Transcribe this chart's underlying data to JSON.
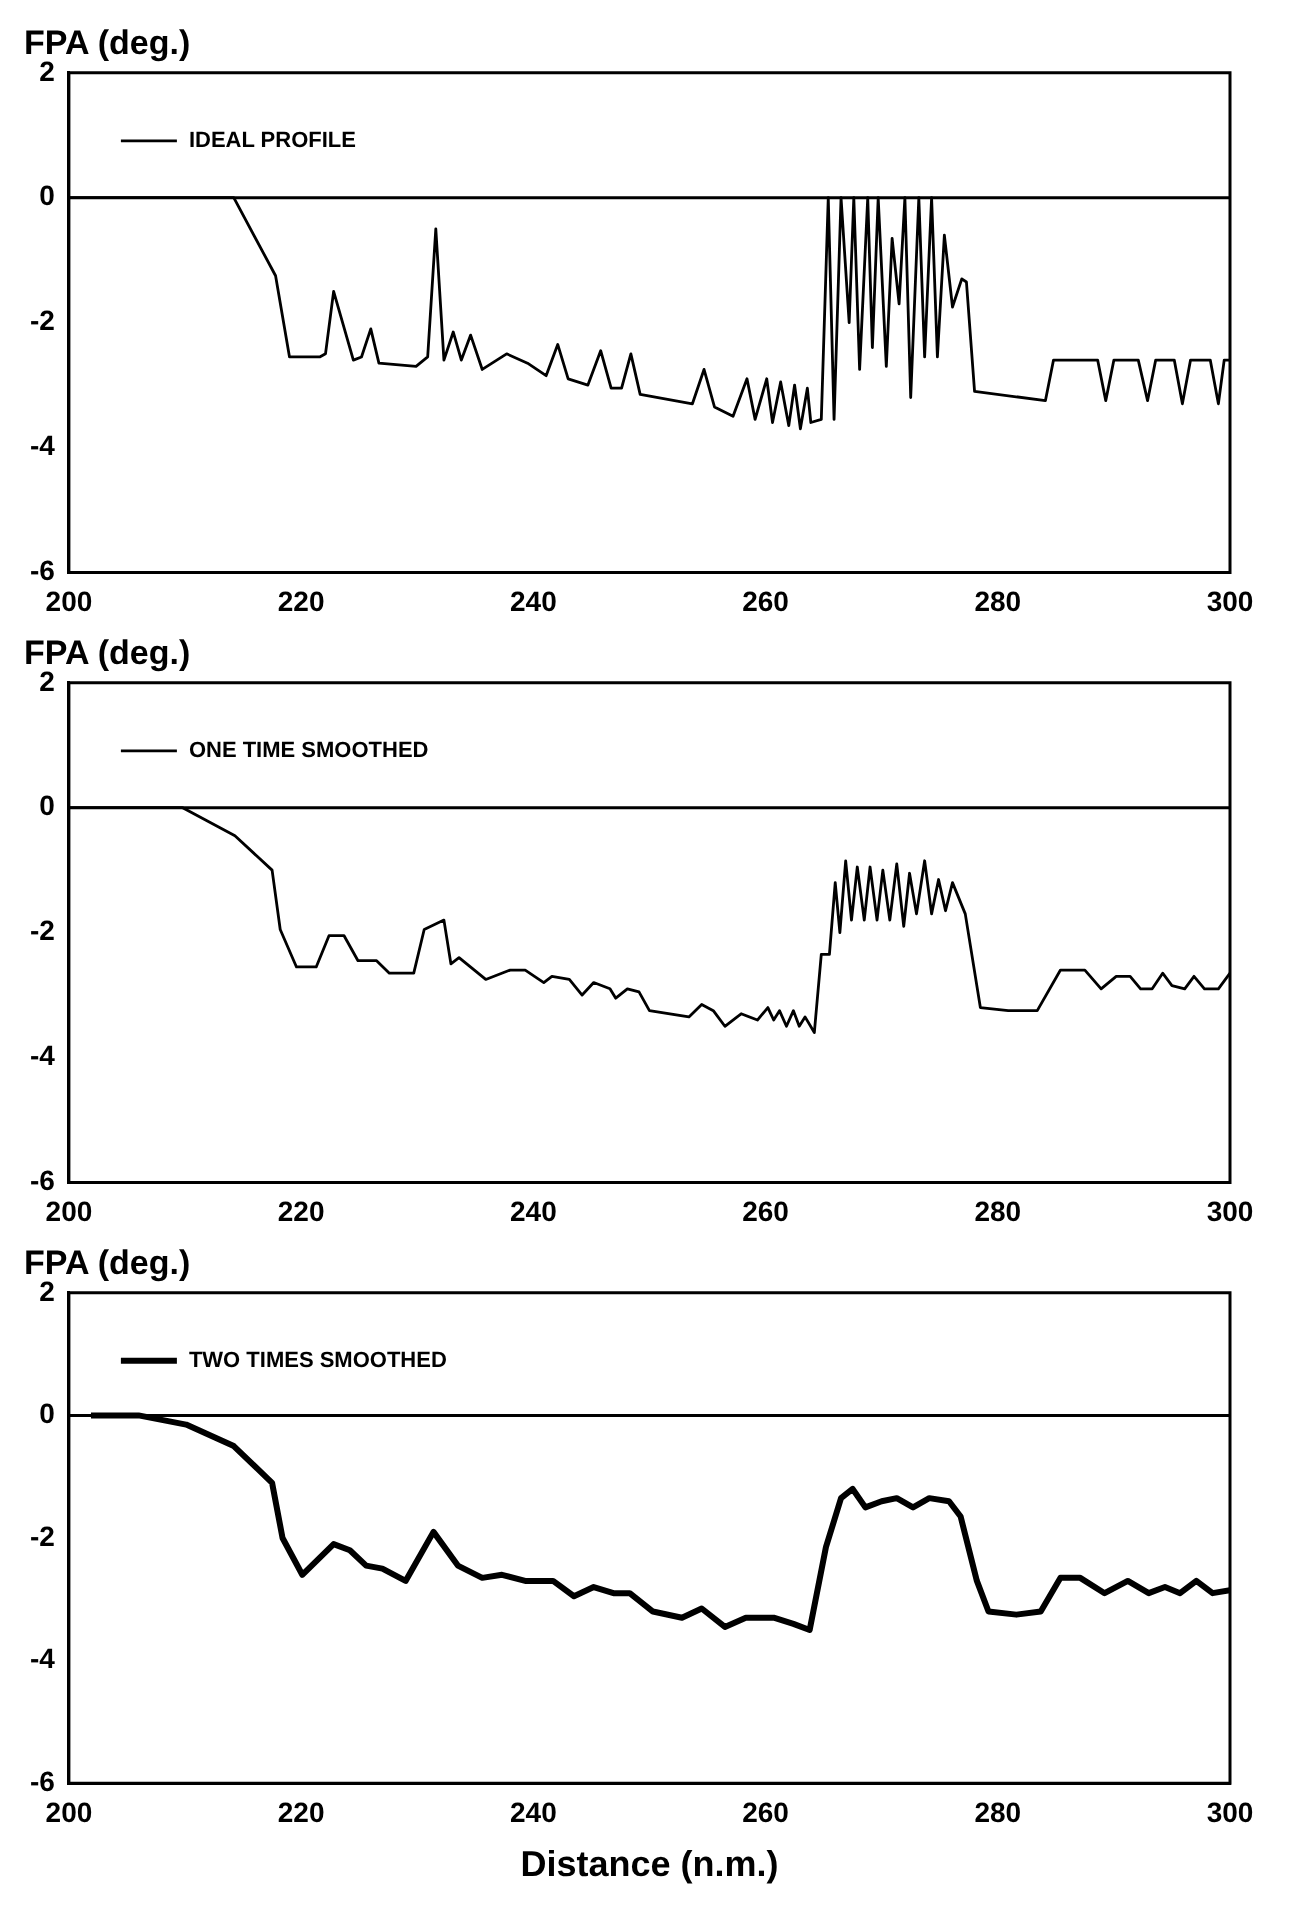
{
  "chart_data": [
    {
      "type": "line",
      "ylabel": "FPA (deg.)",
      "xlim": [
        200,
        300
      ],
      "ylim": [
        -6,
        2
      ],
      "xticks": [
        200,
        220,
        240,
        260,
        280,
        300
      ],
      "yticks": [
        -6,
        -4,
        -2,
        0,
        2
      ],
      "legend": "top left",
      "grid": false,
      "ref_lines": [
        {
          "axis": "y",
          "value": 0,
          "color": "#000000"
        }
      ],
      "series": [
        {
          "name": "IDEAL PROFILE",
          "color": "#000000",
          "x": [
            200,
            214.2,
            217.8,
            219,
            221.6,
            222.1,
            222.8,
            224.5,
            225.2,
            226,
            226.7,
            229.9,
            230.9,
            231.6,
            232.3,
            233.1,
            233.8,
            234.6,
            235.6,
            237.7,
            239.5,
            241.1,
            242.1,
            243,
            244.7,
            245.8,
            246.7,
            247.6,
            248.4,
            249.2,
            253.7,
            254.7,
            255.6,
            257.2,
            258.4,
            259.1,
            260.1,
            260.6,
            261.3,
            262,
            262.5,
            263,
            263.6,
            263.9,
            264.8,
            265.4,
            265.9,
            266.5,
            267.2,
            267.6,
            268.1,
            268.8,
            269.2,
            269.7,
            270.4,
            270.9,
            271.5,
            272,
            272.5,
            273.2,
            273.7,
            274.3,
            274.8,
            275.4,
            276.1,
            276.9,
            277.3,
            278,
            284.1,
            284.8,
            288.6,
            289.3,
            290,
            292.1,
            292.9,
            293.6,
            295.2,
            295.9,
            296.6,
            298.3,
            299,
            299.5,
            300
          ],
          "values": [
            0,
            0,
            -1.25,
            -2.55,
            -2.55,
            -2.5,
            -1.5,
            -2.6,
            -2.55,
            -2.1,
            -2.65,
            -2.7,
            -2.55,
            -0.5,
            -2.6,
            -2.15,
            -2.6,
            -2.2,
            -2.75,
            -2.5,
            -2.65,
            -2.85,
            -2.35,
            -2.9,
            -3,
            -2.45,
            -3.05,
            -3.05,
            -2.5,
            -3.15,
            -3.3,
            -2.75,
            -3.35,
            -3.5,
            -2.9,
            -3.55,
            -2.9,
            -3.6,
            -2.95,
            -3.65,
            -3,
            -3.7,
            -3.05,
            -3.6,
            -3.55,
            0,
            -3.55,
            0,
            -2,
            0,
            -2.75,
            0,
            -2.4,
            0,
            -2.7,
            -0.65,
            -1.7,
            0,
            -3.2,
            0,
            -2.55,
            0,
            -2.55,
            -0.6,
            -1.75,
            -1.3,
            -1.35,
            -3.1,
            -3.25,
            -2.6,
            -2.6,
            -3.25,
            -2.6,
            -2.6,
            -3.25,
            -2.6,
            -2.6,
            -3.3,
            -2.6,
            -2.6,
            -3.3,
            -2.6,
            -2.6
          ]
        }
      ]
    },
    {
      "type": "line",
      "ylabel": "FPA (deg.)",
      "xlim": [
        200,
        300
      ],
      "ylim": [
        -6,
        2
      ],
      "xticks": [
        200,
        220,
        240,
        260,
        280,
        300
      ],
      "yticks": [
        -6,
        -4,
        -2,
        0,
        2
      ],
      "legend": "top left",
      "grid": false,
      "ref_lines": [
        {
          "axis": "y",
          "value": 0,
          "color": "#000000"
        }
      ],
      "series": [
        {
          "name": "ONE TIME SMOOTHED",
          "color": "#000000",
          "x": [
            200,
            209.8,
            214.3,
            217.5,
            218.2,
            219.6,
            221.3,
            222.4,
            223.7,
            224.9,
            226.5,
            227.6,
            229.7,
            230.6,
            232.3,
            232.9,
            233.6,
            235.9,
            238,
            239.3,
            240.9,
            241.6,
            243.1,
            244.2,
            245.2,
            246.6,
            247.1,
            248.1,
            249.1,
            250,
            253.4,
            254.5,
            255.5,
            256.5,
            257.9,
            259.3,
            260.2,
            260.7,
            261.2,
            261.8,
            262.4,
            262.9,
            263.4,
            264.2,
            264.8,
            265.5,
            266,
            266.4,
            266.9,
            267.4,
            267.9,
            268.5,
            269,
            269.6,
            270.1,
            270.7,
            271.3,
            271.9,
            272.4,
            273,
            273.7,
            274.3,
            274.9,
            275.5,
            276.1,
            277.2,
            278.5,
            280.9,
            283.4,
            285.4,
            287.5,
            288.9,
            290.2,
            291.4,
            292.3,
            293.3,
            294.2,
            295,
            296.1,
            296.9,
            297.8,
            299,
            300
          ],
          "values": [
            0,
            0,
            -0.45,
            -1,
            -1.95,
            -2.55,
            -2.55,
            -2.05,
            -2.05,
            -2.45,
            -2.45,
            -2.65,
            -2.65,
            -1.95,
            -1.8,
            -2.5,
            -2.4,
            -2.75,
            -2.6,
            -2.6,
            -2.8,
            -2.7,
            -2.75,
            -3,
            -2.8,
            -2.9,
            -3.05,
            -2.9,
            -2.95,
            -3.25,
            -3.35,
            -3.15,
            -3.25,
            -3.5,
            -3.3,
            -3.4,
            -3.2,
            -3.4,
            -3.25,
            -3.5,
            -3.25,
            -3.5,
            -3.35,
            -3.6,
            -2.35,
            -2.35,
            -1.2,
            -2,
            -0.85,
            -1.8,
            -0.95,
            -1.8,
            -0.95,
            -1.8,
            -1,
            -1.8,
            -0.9,
            -1.9,
            -1.05,
            -1.7,
            -0.85,
            -1.7,
            -1.15,
            -1.65,
            -1.2,
            -1.7,
            -3.2,
            -3.25,
            -3.25,
            -2.6,
            -2.6,
            -2.9,
            -2.7,
            -2.7,
            -2.9,
            -2.9,
            -2.65,
            -2.85,
            -2.9,
            -2.7,
            -2.9,
            -2.9,
            -2.65
          ]
        }
      ]
    },
    {
      "type": "line",
      "ylabel": "FPA (deg.)",
      "xlabel": "Distance (n.m.)",
      "xlim": [
        200,
        300
      ],
      "ylim": [
        -6,
        2
      ],
      "xticks": [
        200,
        220,
        240,
        260,
        280,
        300
      ],
      "yticks": [
        -6,
        -4,
        -2,
        0,
        2
      ],
      "legend": "top left",
      "grid": false,
      "ref_lines": [
        {
          "axis": "y",
          "value": 0,
          "color": "#000000"
        }
      ],
      "series": [
        {
          "name": "TWO TIMES SMOOTHED",
          "color": "#000000",
          "x": [
            201.9,
            206,
            210.1,
            214.2,
            217.5,
            218.4,
            220.1,
            222.8,
            224.2,
            225.6,
            227,
            229,
            231.4,
            233.5,
            235.6,
            237.3,
            239.3,
            241.7,
            243.5,
            245.2,
            246.9,
            248.3,
            250.3,
            252.8,
            254.5,
            256.5,
            258.3,
            260.7,
            262.4,
            263.8,
            265.2,
            266.5,
            267.5,
            268.6,
            270,
            271.3,
            272.7,
            274.1,
            275.8,
            276.8,
            278.2,
            279.2,
            281.6,
            283.7,
            285.4,
            287.1,
            289.2,
            291.2,
            293,
            294.4,
            295.7,
            297.1,
            298.5,
            300
          ],
          "values": [
            0,
            0,
            -0.15,
            -0.5,
            -1.1,
            -2,
            -2.6,
            -2.1,
            -2.2,
            -2.45,
            -2.5,
            -2.7,
            -1.9,
            -2.45,
            -2.65,
            -2.6,
            -2.7,
            -2.7,
            -2.95,
            -2.8,
            -2.9,
            -2.9,
            -3.2,
            -3.3,
            -3.15,
            -3.45,
            -3.3,
            -3.3,
            -3.4,
            -3.5,
            -2.15,
            -1.35,
            -1.2,
            -1.5,
            -1.4,
            -1.35,
            -1.5,
            -1.35,
            -1.4,
            -1.65,
            -2.7,
            -3.2,
            -3.25,
            -3.2,
            -2.65,
            -2.65,
            -2.9,
            -2.7,
            -2.9,
            -2.8,
            -2.9,
            -2.7,
            -2.9,
            -2.85
          ]
        }
      ]
    }
  ]
}
